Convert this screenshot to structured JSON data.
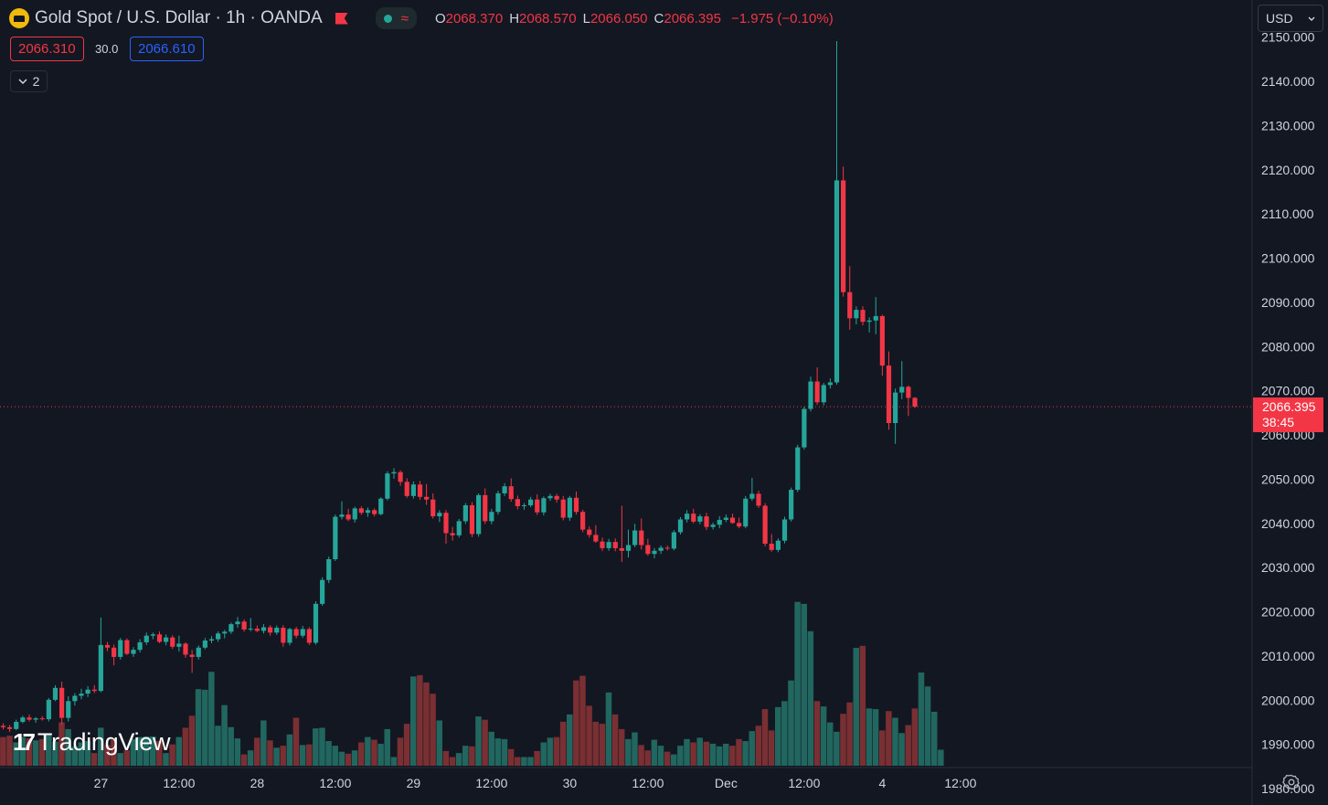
{
  "header": {
    "symbol": "Gold Spot",
    "sep1": "/",
    "quote": "U.S. Dollar",
    "interval": "· 1h",
    "broker": "· OANDA",
    "wave_icon": "wave-icon",
    "open_label": "O",
    "open": "2068.370",
    "high_label": "H",
    "high": "2068.570",
    "low_label": "L",
    "low": "2066.050",
    "close_label": "C",
    "close": "2066.395",
    "change": "−1.975 (−0.10%)"
  },
  "trade": {
    "sell_price": "2066.310",
    "spread": "30.0",
    "buy_price": "2066.610"
  },
  "indicators_toggle": {
    "count": "2"
  },
  "currency_selector": {
    "value": "USD"
  },
  "price_tag": {
    "price": "2066.395",
    "countdown": "38:45"
  },
  "branding": {
    "name": "TradingView"
  },
  "colors": {
    "up": "#26a69a",
    "down": "#f23645",
    "up_volume": "#22675f",
    "down_volume": "#7a2f33",
    "background": "#131722"
  },
  "chart_data": {
    "type": "candlestick",
    "yaxis_ticks": [
      "2150.000",
      "2140.000",
      "2130.000",
      "2120.000",
      "2110.000",
      "2100.000",
      "2090.000",
      "2080.000",
      "2070.000",
      "2060.000",
      "2050.000",
      "2040.000",
      "2030.000",
      "2020.000",
      "2010.000",
      "2000.000",
      "1990.000",
      "1980.000"
    ],
    "ylim": [
      1976.3,
      2158.4
    ],
    "xaxis_ticks": [
      {
        "label": "27",
        "bar": 15
      },
      {
        "label": "12:00",
        "bar": 27
      },
      {
        "label": "28",
        "bar": 39
      },
      {
        "label": "12:00",
        "bar": 51
      },
      {
        "label": "29",
        "bar": 63
      },
      {
        "label": "12:00",
        "bar": 75
      },
      {
        "label": "30",
        "bar": 87
      },
      {
        "label": "12:00",
        "bar": 99
      },
      {
        "label": "Dec",
        "bar": 111
      },
      {
        "label": "12:00",
        "bar": 123
      },
      {
        "label": "4",
        "bar": 135
      },
      {
        "label": "12:00",
        "bar": 147
      }
    ],
    "last_price_line": 2066.395,
    "candles": [
      [
        1994.2,
        1994.8,
        1993.4,
        1993.9
      ],
      [
        1993.9,
        1994.4,
        1992.8,
        1993.5
      ],
      [
        1993.5,
        1995.6,
        1993.2,
        1995.1
      ],
      [
        1995.1,
        1996.5,
        1994.8,
        1996.1
      ],
      [
        1996.1,
        1996.8,
        1995.2,
        1995.6
      ],
      [
        1995.6,
        1996.2,
        1994.9,
        1995.9
      ],
      [
        1995.9,
        1996.4,
        1995.4,
        1995.7
      ],
      [
        1995.7,
        2000.5,
        1995.2,
        2000.1
      ],
      [
        2000.1,
        2003.4,
        1999.8,
        2002.8
      ],
      [
        2002.8,
        2004.2,
        1994.6,
        1996.0
      ],
      [
        1996.0,
        2000.9,
        1995.2,
        1999.8
      ],
      [
        1999.8,
        2001.6,
        1998.8,
        2001.0
      ],
      [
        2001.0,
        2002.6,
        2000.2,
        2001.5
      ],
      [
        2001.5,
        2003.2,
        2000.7,
        2002.4
      ],
      [
        2002.4,
        2003.4,
        2001.6,
        2002.1
      ],
      [
        2002.1,
        2018.7,
        2001.8,
        2012.5
      ],
      [
        2012.5,
        2013.2,
        2011.1,
        2011.9
      ],
      [
        2011.9,
        2012.6,
        2007.9,
        2009.8
      ],
      [
        2009.8,
        2014.1,
        2009.2,
        2013.6
      ],
      [
        2013.6,
        2014.0,
        2010.2,
        2010.5
      ],
      [
        2010.5,
        2012.0,
        2009.8,
        2011.4
      ],
      [
        2011.4,
        2013.8,
        2010.8,
        2013.1
      ],
      [
        2013.1,
        2015.3,
        2012.5,
        2014.6
      ],
      [
        2014.6,
        2015.3,
        2013.8,
        2014.9
      ],
      [
        2014.9,
        2015.6,
        2012.9,
        2013.2
      ],
      [
        2013.2,
        2014.9,
        2012.4,
        2014.2
      ],
      [
        2014.2,
        2014.7,
        2011.6,
        2012.1
      ],
      [
        2012.1,
        2014.6,
        2011.0,
        2012.8
      ],
      [
        2012.8,
        2013.1,
        2009.6,
        2010.3
      ],
      [
        2010.3,
        2011.4,
        2006.2,
        2009.8
      ],
      [
        2009.8,
        2012.4,
        2009.2,
        2011.9
      ],
      [
        2011.9,
        2014.1,
        2011.5,
        2013.5
      ],
      [
        2013.5,
        2014.5,
        2012.9,
        2013.8
      ],
      [
        2013.8,
        2015.6,
        2013.2,
        2015.1
      ],
      [
        2015.1,
        2015.9,
        2014.0,
        2015.5
      ],
      [
        2015.5,
        2017.6,
        2015.0,
        2017.2
      ],
      [
        2017.2,
        2018.8,
        2016.4,
        2017.8
      ],
      [
        2017.8,
        2018.3,
        2015.5,
        2016.0
      ],
      [
        2016.0,
        2018.6,
        2015.6,
        2016.2
      ],
      [
        2016.2,
        2016.9,
        2015.4,
        2015.7
      ],
      [
        2015.7,
        2017.2,
        2015.1,
        2016.5
      ],
      [
        2016.5,
        2017.0,
        2014.6,
        2015.3
      ],
      [
        2015.3,
        2016.9,
        2014.8,
        2016.4
      ],
      [
        2016.4,
        2017.0,
        2012.1,
        2013.0
      ],
      [
        2013.0,
        2016.4,
        2012.4,
        2016.1
      ],
      [
        2016.1,
        2016.6,
        2014.0,
        2014.6
      ],
      [
        2014.6,
        2016.8,
        2014.1,
        2016.1
      ],
      [
        2016.1,
        2016.5,
        2012.5,
        2013.0
      ],
      [
        2013.0,
        2022.4,
        2012.6,
        2021.8
      ],
      [
        2021.8,
        2027.8,
        2021.4,
        2027.2
      ],
      [
        2027.2,
        2032.5,
        2026.5,
        2031.9
      ],
      [
        2031.9,
        2042.0,
        2031.5,
        2041.5
      ],
      [
        2041.5,
        2045.0,
        2040.9,
        2042.0
      ],
      [
        2042.0,
        2043.3,
        2040.5,
        2040.9
      ],
      [
        2040.9,
        2043.8,
        2040.2,
        2043.4
      ],
      [
        2043.4,
        2043.9,
        2041.9,
        2042.4
      ],
      [
        2042.4,
        2043.6,
        2041.5,
        2043.0
      ],
      [
        2043.0,
        2043.4,
        2041.6,
        2042.1
      ],
      [
        2042.1,
        2045.9,
        2041.8,
        2045.6
      ],
      [
        2045.6,
        2051.8,
        2045.2,
        2051.3
      ],
      [
        2051.3,
        2052.5,
        2050.1,
        2051.6
      ],
      [
        2051.6,
        2052.0,
        2048.5,
        2049.4
      ],
      [
        2049.4,
        2050.2,
        2045.8,
        2046.2
      ],
      [
        2046.2,
        2049.5,
        2045.6,
        2048.8
      ],
      [
        2048.8,
        2049.6,
        2045.3,
        2046.0
      ],
      [
        2046.0,
        2048.9,
        2044.2,
        2045.4
      ],
      [
        2045.4,
        2046.8,
        2041.1,
        2041.6
      ],
      [
        2041.6,
        2043.0,
        2040.3,
        2042.4
      ],
      [
        2042.4,
        2043.0,
        2035.4,
        2037.8
      ],
      [
        2037.8,
        2039.2,
        2036.1,
        2037.3
      ],
      [
        2037.3,
        2041.0,
        2036.8,
        2040.5
      ],
      [
        2040.5,
        2044.6,
        2039.9,
        2044.1
      ],
      [
        2044.1,
        2044.8,
        2036.9,
        2037.6
      ],
      [
        2037.6,
        2046.8,
        2037.0,
        2046.4
      ],
      [
        2046.4,
        2047.9,
        2039.9,
        2040.5
      ],
      [
        2040.5,
        2043.3,
        2039.8,
        2042.6
      ],
      [
        2042.6,
        2047.4,
        2042.0,
        2046.8
      ],
      [
        2046.8,
        2049.1,
        2046.2,
        2048.4
      ],
      [
        2048.4,
        2050.2,
        2044.9,
        2045.5
      ],
      [
        2045.5,
        2046.3,
        2043.2,
        2043.9
      ],
      [
        2043.9,
        2044.6,
        2043.1,
        2044.1
      ],
      [
        2044.1,
        2046.0,
        2043.7,
        2045.4
      ],
      [
        2045.4,
        2046.6,
        2041.9,
        2042.5
      ],
      [
        2042.5,
        2046.1,
        2041.8,
        2045.7
      ],
      [
        2045.7,
        2046.7,
        2045.1,
        2046.2
      ],
      [
        2046.2,
        2046.7,
        2044.7,
        2045.4
      ],
      [
        2045.4,
        2046.2,
        2040.7,
        2041.3
      ],
      [
        2041.3,
        2046.2,
        2040.6,
        2045.8
      ],
      [
        2045.8,
        2047.2,
        2042.0,
        2042.6
      ],
      [
        2042.6,
        2043.1,
        2038.0,
        2038.6
      ],
      [
        2038.6,
        2039.3,
        2036.8,
        2037.4
      ],
      [
        2037.4,
        2039.6,
        2035.6,
        2035.9
      ],
      [
        2035.9,
        2036.8,
        2033.8,
        2034.4
      ],
      [
        2034.4,
        2036.5,
        2033.8,
        2035.8
      ],
      [
        2035.8,
        2036.6,
        2033.7,
        2034.4
      ],
      [
        2034.4,
        2044.0,
        2031.3,
        2033.8
      ],
      [
        2033.8,
        2038.6,
        2032.3,
        2035.1
      ],
      [
        2035.1,
        2039.9,
        2034.6,
        2038.4
      ],
      [
        2038.4,
        2041.1,
        2034.1,
        2035.1
      ],
      [
        2035.1,
        2036.5,
        2032.7,
        2033.1
      ],
      [
        2033.1,
        2034.4,
        2032.1,
        2033.8
      ],
      [
        2033.8,
        2035.0,
        2033.1,
        2034.5
      ],
      [
        2034.5,
        2035.0,
        2033.9,
        2034.3
      ],
      [
        2034.3,
        2038.5,
        2033.9,
        2038.0
      ],
      [
        2038.0,
        2041.4,
        2037.5,
        2040.9
      ],
      [
        2040.9,
        2043.0,
        2040.2,
        2042.2
      ],
      [
        2042.2,
        2043.3,
        2040.0,
        2040.4
      ],
      [
        2040.4,
        2042.1,
        2039.8,
        2041.6
      ],
      [
        2041.6,
        2042.4,
        2038.5,
        2039.2
      ],
      [
        2039.2,
        2040.2,
        2038.6,
        2039.7
      ],
      [
        2039.7,
        2041.6,
        2038.9,
        2040.8
      ],
      [
        2040.8,
        2042.0,
        2040.3,
        2041.3
      ],
      [
        2041.3,
        2042.2,
        2039.9,
        2040.1
      ],
      [
        2040.1,
        2041.3,
        2038.9,
        2039.3
      ],
      [
        2039.3,
        2046.2,
        2038.9,
        2045.6
      ],
      [
        2045.6,
        2050.3,
        2045.1,
        2046.7
      ],
      [
        2046.7,
        2047.4,
        2043.5,
        2044.0
      ],
      [
        2044.0,
        2044.6,
        2034.8,
        2035.4
      ],
      [
        2035.4,
        2037.6,
        2033.6,
        2034.0
      ],
      [
        2034.0,
        2036.6,
        2033.5,
        2036.1
      ],
      [
        2036.1,
        2041.5,
        2035.5,
        2040.9
      ],
      [
        2040.9,
        2048.1,
        2040.4,
        2047.6
      ],
      [
        2047.6,
        2057.8,
        2047.1,
        2057.2
      ],
      [
        2057.2,
        2066.4,
        2056.7,
        2065.9
      ],
      [
        2065.9,
        2073.2,
        2065.3,
        2072.1
      ],
      [
        2072.1,
        2075.3,
        2066.8,
        2067.4
      ],
      [
        2067.4,
        2071.8,
        2066.7,
        2071.3
      ],
      [
        2071.3,
        2072.8,
        2070.5,
        2071.9
      ],
      [
        2071.9,
        2149.1,
        2071.4,
        2117.6
      ],
      [
        2117.6,
        2120.7,
        2091.3,
        2092.3
      ],
      [
        2092.3,
        2098.2,
        2083.8,
        2086.4
      ],
      [
        2086.4,
        2089.1,
        2085.0,
        2088.3
      ],
      [
        2088.3,
        2089.1,
        2084.8,
        2085.6
      ],
      [
        2085.6,
        2086.6,
        2083.2,
        2085.9
      ],
      [
        2085.9,
        2091.2,
        2082.8,
        2086.9
      ],
      [
        2086.9,
        2087.2,
        2073.4,
        2075.7
      ],
      [
        2075.7,
        2078.9,
        2061.2,
        2062.7
      ],
      [
        2062.7,
        2070.5,
        2058.0,
        2069.6
      ],
      [
        2069.6,
        2076.7,
        2068.1,
        2070.9
      ],
      [
        2070.9,
        2071.2,
        2064.3,
        2068.4
      ],
      [
        2068.4,
        2068.6,
        2066.1,
        2066.4
      ]
    ],
    "volume_scale": [
      0,
      29500
    ],
    "volumes": [
      4300,
      4500,
      3500,
      4300,
      4100,
      3800,
      4000,
      4700,
      3600,
      6500,
      5500,
      2900,
      3500,
      3700,
      1900,
      5700,
      3100,
      4100,
      1900,
      2300,
      4000,
      4300,
      4400,
      4400,
      3700,
      1900,
      3200,
      4300,
      5700,
      7500,
      11500,
      11400,
      14100,
      6000,
      9100,
      5800,
      4100,
      1700,
      2300,
      4200,
      6800,
      3800,
      2700,
      3000,
      4700,
      7200,
      3100,
      3200,
      5600,
      5700,
      3700,
      3000,
      2100,
      1800,
      2300,
      3500,
      4300,
      3900,
      3300,
      5500,
      1300,
      4200,
      6300,
      13400,
      13600,
      12500,
      10800,
      6800,
      2200,
      1300,
      1900,
      3000,
      2900,
      7400,
      6900,
      5100,
      4100,
      4000,
      2500,
      1300,
      1300,
      1300,
      2200,
      3500,
      4200,
      4300,
      6600,
      7700,
      12800,
      13500,
      9000,
      6600,
      6300,
      11000,
      7700,
      5500,
      4000,
      5000,
      3100,
      2300,
      3900,
      3000,
      2100,
      1700,
      3000,
      4000,
      3500,
      4200,
      3600,
      3300,
      2900,
      3300,
      3000,
      4000,
      3700,
      5200,
      6000,
      8500,
      5300,
      8800,
      9700,
      12800,
      24600,
      24300,
      20200,
      9700,
      8900,
      6500,
      5100,
      7800,
      9500,
      17700,
      18000,
      8600,
      8500,
      5300,
      8200,
      7200,
      4900,
      6100,
      8600,
      14000,
      11900,
      8100,
      2400
    ],
    "volume_colors": "derived from candle direction"
  }
}
